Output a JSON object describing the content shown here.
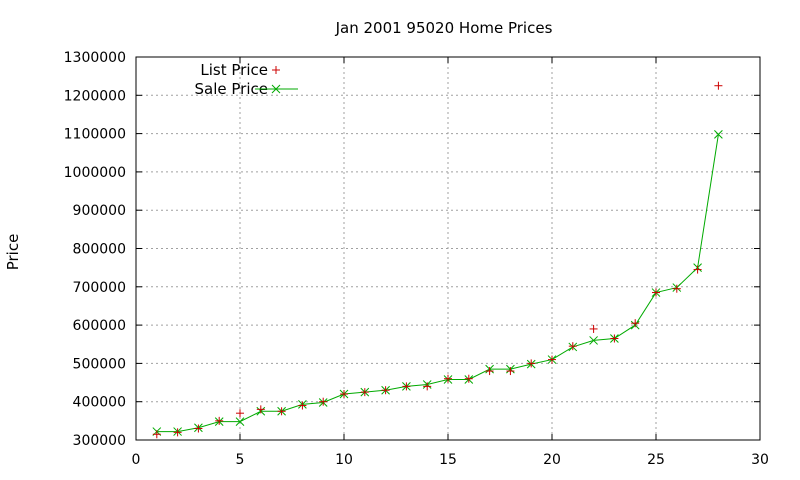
{
  "chart_data": {
    "type": "line",
    "title": "Jan 2001 95020 Home Prices",
    "xlabel": "",
    "ylabel": "Price",
    "xlim": [
      0,
      30
    ],
    "ylim": [
      300000,
      1300000
    ],
    "x_ticks": [
      0,
      5,
      10,
      15,
      20,
      25,
      30
    ],
    "y_ticks": [
      300000,
      400000,
      500000,
      600000,
      700000,
      800000,
      900000,
      1000000,
      1100000,
      1200000,
      1300000
    ],
    "grid": true,
    "legend_position": "top-left",
    "series": [
      {
        "name": "List Price",
        "marker": "plus",
        "line": false,
        "color": "#cc0000",
        "x": [
          1,
          2,
          3,
          4,
          5,
          6,
          7,
          8,
          9,
          10,
          11,
          12,
          13,
          14,
          15,
          16,
          17,
          18,
          19,
          20,
          21,
          22,
          23,
          24,
          25,
          26,
          27,
          28
        ],
        "values": [
          315000,
          320000,
          330000,
          350000,
          370000,
          380000,
          375000,
          390000,
          400000,
          420000,
          425000,
          430000,
          440000,
          440000,
          460000,
          460000,
          480000,
          480000,
          500000,
          510000,
          545000,
          590000,
          565000,
          605000,
          685000,
          695000,
          745000,
          1225000
        ]
      },
      {
        "name": "Sale Price",
        "marker": "cross",
        "line": true,
        "color": "#00aa00",
        "x": [
          1,
          2,
          3,
          4,
          5,
          6,
          7,
          8,
          9,
          10,
          11,
          12,
          13,
          14,
          15,
          16,
          17,
          18,
          19,
          20,
          21,
          22,
          23,
          24,
          25,
          26,
          27,
          28
        ],
        "values": [
          322000,
          322000,
          332000,
          348000,
          348000,
          375000,
          375000,
          393000,
          398000,
          420000,
          425000,
          430000,
          440000,
          445000,
          458000,
          458000,
          485000,
          485000,
          498000,
          510000,
          543000,
          560000,
          565000,
          600000,
          685000,
          698000,
          750000,
          1098000
        ]
      }
    ]
  }
}
